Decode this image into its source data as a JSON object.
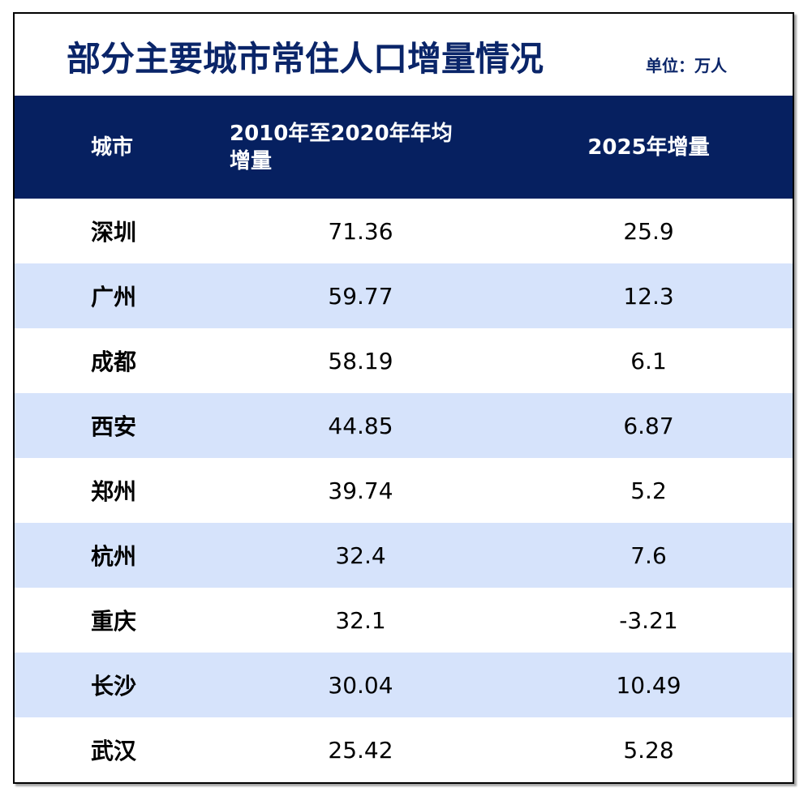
{
  "title": "部分主要城市常住人口增量情况",
  "unit": "单位：万人",
  "table": {
    "headers": {
      "city": "城市",
      "avg_increase": "2010年至2020年年均增量",
      "increase_2025": "2025年增量"
    },
    "rows": [
      {
        "city": "深圳",
        "avg_increase": "71.36",
        "increase_2025": "25.9"
      },
      {
        "city": "广州",
        "avg_increase": "59.77",
        "increase_2025": "12.3"
      },
      {
        "city": "成都",
        "avg_increase": "58.19",
        "increase_2025": "6.1"
      },
      {
        "city": "西安",
        "avg_increase": "44.85",
        "increase_2025": "6.87"
      },
      {
        "city": "郑州",
        "avg_increase": "39.74",
        "increase_2025": "5.2"
      },
      {
        "city": "杭州",
        "avg_increase": "32.4",
        "increase_2025": "7.6"
      },
      {
        "city": "重庆",
        "avg_increase": "32.1",
        "increase_2025": "-3.21"
      },
      {
        "city": "长沙",
        "avg_increase": "30.04",
        "increase_2025": "10.49"
      },
      {
        "city": "武汉",
        "avg_increase": "25.42",
        "increase_2025": "5.28"
      }
    ]
  },
  "colors": {
    "header_bg": "#062060",
    "title_text": "#0a2569",
    "stripe_bg": "#d6e3fb"
  }
}
